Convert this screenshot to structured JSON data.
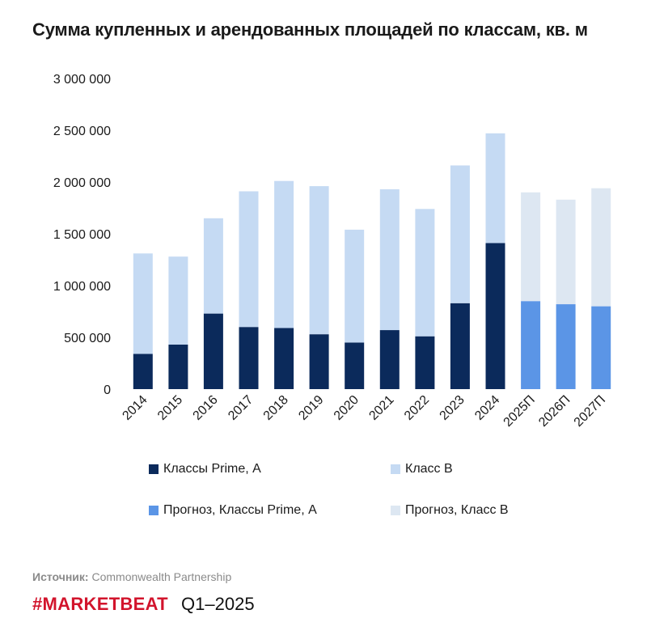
{
  "title": "Сумма купленных и арендованных площадей по классам, кв. м",
  "chart_data": {
    "type": "bar",
    "stacked": true,
    "categories": [
      "2014",
      "2015",
      "2016",
      "2017",
      "2018",
      "2019",
      "2020",
      "2021",
      "2022",
      "2023",
      "2024",
      "2025П",
      "2026П",
      "2027П"
    ],
    "series": [
      {
        "name": "Классы Prime, А",
        "color": "#0b2a5b",
        "values": [
          340000,
          430000,
          730000,
          600000,
          590000,
          530000,
          450000,
          570000,
          510000,
          830000,
          1410000,
          null,
          null,
          null
        ]
      },
      {
        "name": "Класс В",
        "color": "#c5daf3",
        "values": [
          970000,
          850000,
          920000,
          1310000,
          1420000,
          1430000,
          1090000,
          1360000,
          1230000,
          1330000,
          1060000,
          null,
          null,
          null
        ]
      },
      {
        "name": "Прогноз, Классы Prime, А",
        "color": "#5b95e6",
        "values": [
          null,
          null,
          null,
          null,
          null,
          null,
          null,
          null,
          null,
          null,
          null,
          850000,
          820000,
          800000
        ]
      },
      {
        "name": "Прогноз, Класс В",
        "color": "#dde7f2",
        "values": [
          null,
          null,
          null,
          null,
          null,
          null,
          null,
          null,
          null,
          null,
          null,
          1050000,
          1010000,
          1140000
        ]
      }
    ],
    "ylim": [
      0,
      3000000
    ],
    "yticks": [
      0,
      500000,
      1000000,
      1500000,
      2000000,
      2500000,
      3000000
    ],
    "ytick_labels": [
      "0",
      "500 000",
      "1 000 000",
      "1 500 000",
      "2 000 000",
      "2 500 000",
      "3 000 000"
    ],
    "grid": false,
    "legend_position": "bottom"
  },
  "source": {
    "label": "Источник:",
    "text": "Commonwealth Partnership"
  },
  "brand": {
    "name": "#MARKETBEAT",
    "period": "Q1–2025"
  }
}
